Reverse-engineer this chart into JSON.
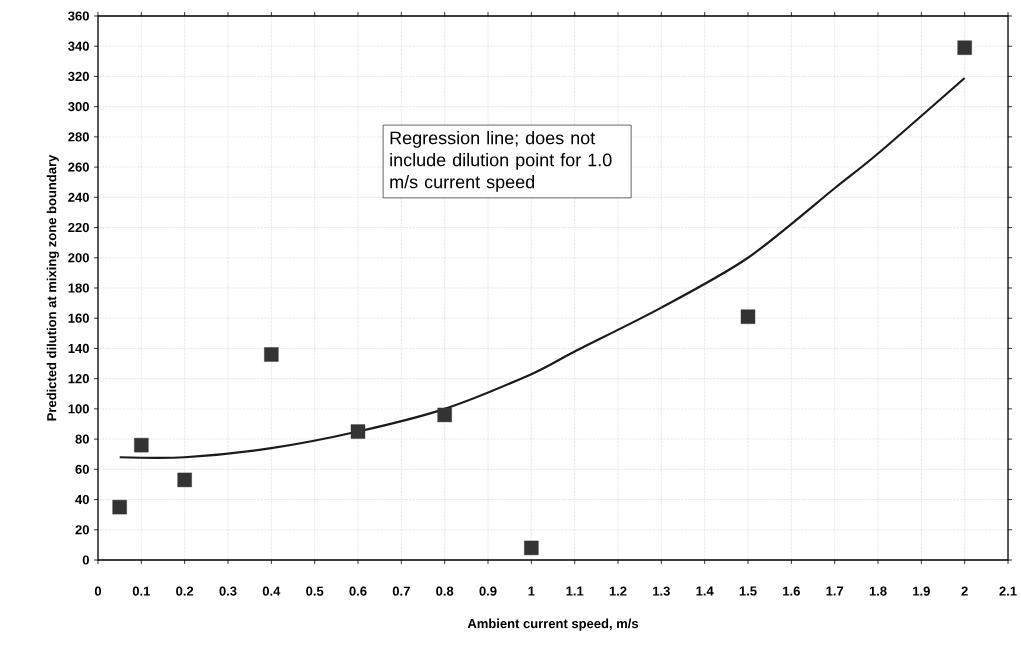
{
  "chart_data": {
    "type": "scatter",
    "xlabel": "Ambient current speed, m/s",
    "ylabel": "Predicted dilution at mixing zone boundary",
    "x": [
      0.05,
      0.1,
      0.2,
      0.4,
      0.6,
      0.8,
      1,
      1.5,
      2
    ],
    "series": [
      {
        "color": "#333333",
        "marker": "square",
        "values": [
          35,
          76,
          53,
          136,
          85,
          96,
          8,
          161,
          339
        ]
      },
      {
        "type": "line",
        "color": "#1a1a1a",
        "marker": "none",
        "line_style": "solid",
        "x": [
          0.05,
          0.2,
          0.4,
          0.6,
          0.8,
          1,
          1.1,
          1.3,
          1.5,
          1.7,
          1.8,
          2
        ],
        "values": [
          68,
          68,
          74,
          85,
          100,
          123,
          138,
          167,
          200,
          246,
          269,
          319
        ]
      }
    ],
    "annotations": [
      "Regression line; does not include dilution point for 1.0 m/s current speed"
    ],
    "xlim": [
      0,
      2.1
    ],
    "ylim": [
      0,
      360
    ],
    "xticks": [
      0,
      0.1,
      0.2,
      0.3,
      0.4,
      0.5,
      0.6,
      0.7,
      0.8,
      0.9,
      1,
      1.1,
      1.2,
      1.3,
      1.4,
      1.5,
      1.6,
      1.7,
      1.8,
      1.9,
      2,
      2.1
    ],
    "yticks": [
      0,
      20,
      40,
      60,
      80,
      100,
      120,
      140,
      160,
      180,
      200,
      220,
      240,
      260,
      280,
      300,
      320,
      340,
      360
    ],
    "grid": true
  }
}
